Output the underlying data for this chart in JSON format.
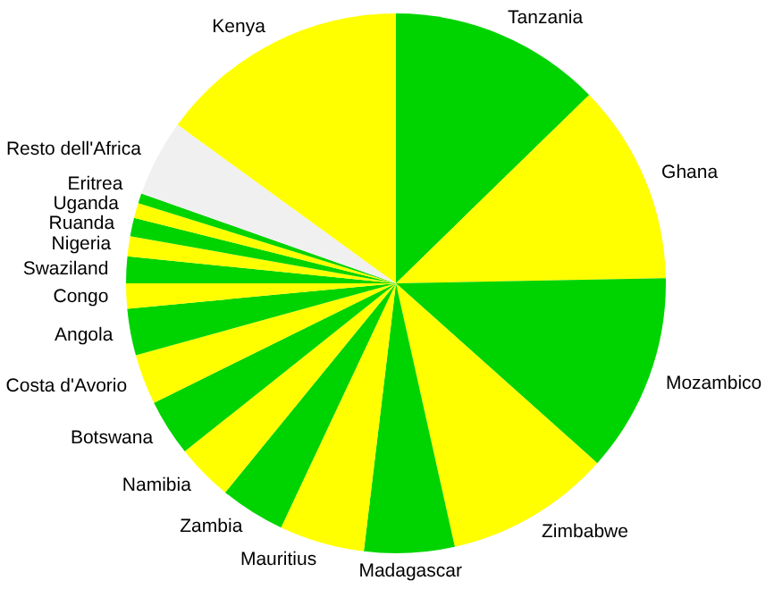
{
  "chart_data": {
    "type": "pie",
    "categories": [
      "Tanzania",
      "Ghana",
      "Mozambico",
      "Zimbabwe",
      "Madagascar",
      "Mauritius",
      "Zambia",
      "Namibia",
      "Botswana",
      "Costa d'Avorio",
      "Angola",
      "Congo",
      "Swaziland",
      "Nigeria",
      "Ruanda",
      "Uganda",
      "Eritrea",
      "Resto dell'Africa",
      "Kenya"
    ],
    "values": [
      12.7,
      12.0,
      11.9,
      9.9,
      5.4,
      5.1,
      3.9,
      3.4,
      3.4,
      3.0,
      2.8,
      1.5,
      1.6,
      1.2,
      1.1,
      0.9,
      0.6,
      4.6,
      15.0
    ],
    "colors": [
      "#00d400",
      "#ffff00",
      "#00d400",
      "#ffff00",
      "#00d400",
      "#ffff00",
      "#00d400",
      "#ffff00",
      "#00d400",
      "#ffff00",
      "#00d400",
      "#ffff00",
      "#00d400",
      "#ffff00",
      "#00d400",
      "#ffff00",
      "#00d400",
      "#f0f0f0",
      "#ffff00"
    ]
  }
}
